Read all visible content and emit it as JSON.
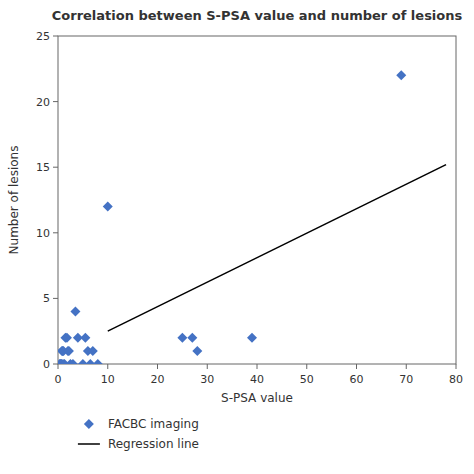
{
  "chart_data": {
    "type": "scatter",
    "title": "Correlation between S-PSA value and number of lesions",
    "xlabel": "S-PSA value",
    "ylabel": "Number of lesions",
    "xlim": [
      0,
      80
    ],
    "ylim": [
      0,
      25
    ],
    "xticks": [
      0,
      10,
      20,
      30,
      40,
      50,
      60,
      70,
      80
    ],
    "yticks": [
      0,
      5,
      10,
      15,
      20,
      25
    ],
    "grid": false,
    "legend": "below",
    "series": [
      {
        "name": "FACBC imaging",
        "type": "scatter",
        "color": "#4472C4",
        "marker": "diamond",
        "x": [
          0.3,
          0.5,
          0.6,
          0.7,
          0.8,
          0.9,
          1.0,
          1.1,
          1.3,
          1.5,
          1.8,
          2.0,
          2.2,
          2.5,
          3.0,
          3.5,
          4.0,
          5.0,
          5.5,
          6.0,
          6.5,
          7.0,
          8.0,
          10.0,
          25.0,
          27.0,
          28.0,
          39.0,
          69.0
        ],
        "values": [
          0,
          0,
          0,
          0,
          1,
          1,
          0,
          1,
          0,
          2,
          2,
          1,
          1,
          0,
          0,
          4,
          2,
          0,
          2,
          1,
          0,
          1,
          0,
          12,
          2,
          2,
          1,
          2,
          22
        ]
      },
      {
        "name": "Regression line",
        "type": "line",
        "color": "black",
        "line_style": "solid",
        "x": [
          10,
          78
        ],
        "values": [
          2.5,
          15.2
        ]
      }
    ]
  }
}
